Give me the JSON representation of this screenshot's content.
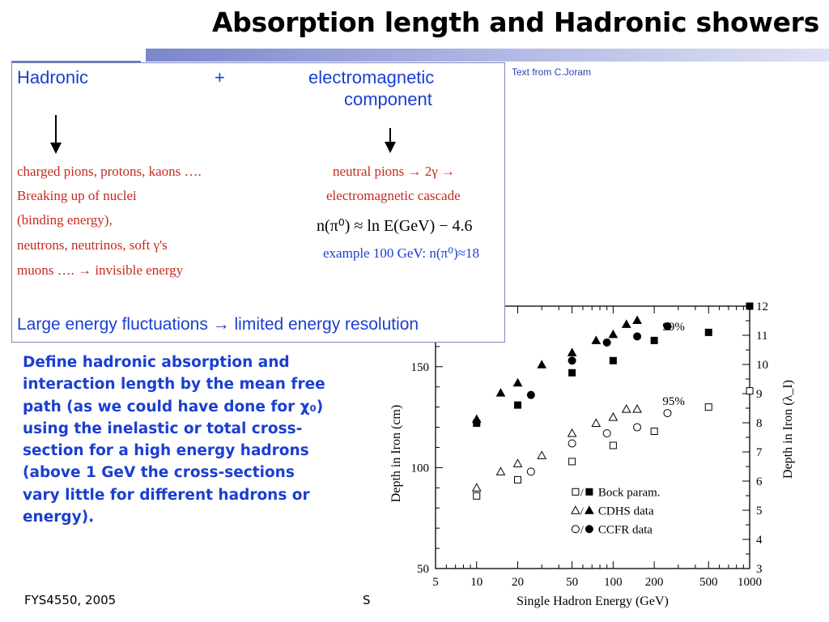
{
  "slide": {
    "title": "Absorption length and Hadronic showers",
    "credit": "Text from C.Joram"
  },
  "box": {
    "hadronic": "Hadronic",
    "plus": "+",
    "em_line1": "electromagnetic",
    "em_line2": "component",
    "left_lines": [
      "charged pions, protons, kaons ….",
      "Breaking up of nuclei",
      "(binding energy),",
      "neutrons, neutrinos, soft γ's",
      "muons ….   → invisible energy"
    ],
    "right_line1": "neutral pions → 2γ →",
    "right_line2": "electromagnetic cascade",
    "formula": "n(π⁰) ≈ ln E(GeV) − 4.6",
    "example": "example 100 GeV: n(π⁰)≈18",
    "bottom": "Large energy fluctuations → limited energy resolution"
  },
  "define_lines": [
    "Define hadronic absorption and",
    "interaction length by the mean free",
    "path  (as we could have done for χ₀)",
    "using the inelastic or total cross-",
    "section for a high energy hadrons",
    "(above 1 GeV the cross-sections",
    "vary little for different hadrons or",
    "energy)."
  ],
  "footer": {
    "left": "FYS4550, 2005",
    "mid": "S"
  },
  "chart_data": {
    "type": "scatter",
    "xlabel": "Single Hadron Energy (GeV)",
    "ylabel": "Depth in Iron (cm)",
    "y2label": "Depth in Iron (λ_I)",
    "xscale": "log",
    "xlim": [
      5,
      1000
    ],
    "ylim": [
      50,
      180
    ],
    "y2lim": [
      3,
      12
    ],
    "x_ticks": [
      "5",
      "10",
      "20",
      "50",
      "100",
      "200",
      "500",
      "1000"
    ],
    "y_ticks": [
      "50",
      "100",
      "150"
    ],
    "y2_ticks": [
      "3",
      "4",
      "5",
      "6",
      "7",
      "8",
      "9",
      "10",
      "11",
      "12"
    ],
    "annotations": [
      "99%",
      "95%"
    ],
    "legend": {
      "position": "bottom-right",
      "entries": [
        {
          "symbols": "□/■",
          "label": "Bock param."
        },
        {
          "symbols": "△/▲",
          "label": "CDHS data"
        },
        {
          "symbols": "○/●",
          "label": "CCFR data"
        }
      ]
    },
    "series": [
      {
        "name": "Bock param.",
        "containment": "99%",
        "marker": "square",
        "filled": true,
        "x": [
          10,
          20,
          50,
          100,
          200,
          500,
          1000
        ],
        "y": [
          122,
          131,
          147,
          153,
          163,
          167,
          180
        ]
      },
      {
        "name": "CDHS data",
        "containment": "99%",
        "marker": "triangle",
        "filled": true,
        "x": [
          10,
          15,
          20,
          30,
          50,
          75,
          100,
          125,
          150
        ],
        "y": [
          124,
          137,
          142,
          151,
          157,
          163,
          166,
          171,
          173
        ]
      },
      {
        "name": "CCFR data",
        "containment": "99%",
        "marker": "circle",
        "filled": true,
        "x": [
          25,
          50,
          90,
          150,
          250
        ],
        "y": [
          136,
          153,
          162,
          165,
          170
        ]
      },
      {
        "name": "Bock param.",
        "containment": "95%",
        "marker": "square",
        "filled": false,
        "x": [
          10,
          20,
          50,
          100,
          200,
          500,
          1000
        ],
        "y": [
          86,
          94,
          103,
          111,
          118,
          130,
          138
        ]
      },
      {
        "name": "CDHS data",
        "containment": "95%",
        "marker": "triangle",
        "filled": false,
        "x": [
          10,
          15,
          20,
          30,
          50,
          75,
          100,
          125,
          150
        ],
        "y": [
          90,
          98,
          102,
          106,
          117,
          122,
          125,
          129,
          129
        ]
      },
      {
        "name": "CCFR data",
        "containment": "95%",
        "marker": "circle",
        "filled": false,
        "x": [
          25,
          50,
          90,
          150,
          250
        ],
        "y": [
          98,
          112,
          117,
          120,
          127
        ]
      }
    ]
  }
}
